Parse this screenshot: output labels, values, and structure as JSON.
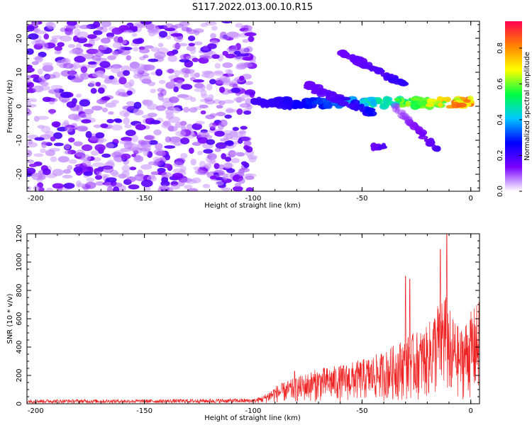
{
  "title": "S117.2022.013.00.10.R15",
  "colorbar": {
    "label": "Normalized spectral amplitude",
    "ticks": [
      "0.0",
      "0.2",
      "0.4",
      "0.6",
      "0.8"
    ],
    "tick_values": [
      0.0,
      0.2,
      0.4,
      0.6,
      0.8
    ],
    "range": [
      0,
      0.95
    ],
    "colors": [
      "#ffffff",
      "#7a00ff",
      "#0000ff",
      "#00c8ff",
      "#00ff40",
      "#ffff00",
      "#ff8000",
      "#ff0050"
    ]
  },
  "chart_data": [
    {
      "type": "heatmap",
      "xlabel": "Height of straight line (km)",
      "ylabel": "Frequency (Hz)",
      "xlim": [
        -204,
        4
      ],
      "ylim": [
        -25,
        25
      ],
      "x_ticks": [
        "-200",
        "-150",
        "-100",
        "-50",
        "0"
      ],
      "x_tick_values": [
        -200,
        -150,
        -100,
        -50,
        0
      ],
      "y_ticks": [
        "20",
        "10",
        "0",
        "-10",
        "-20"
      ],
      "y_tick_values": [
        20,
        10,
        0,
        -10,
        -20
      ],
      "noise_region": {
        "x": [
          -204,
          -100
        ],
        "y": [
          -25,
          25
        ],
        "amplitude": [
          0.05,
          0.2
        ]
      },
      "features": [
        {
          "x": [
            -100,
            0
          ],
          "y": [
            1,
            1
          ],
          "width_hz": 2.5,
          "amplitude": [
            0.2,
            0.95
          ]
        },
        {
          "x": [
            -60,
            -30
          ],
          "y": [
            16,
            6
          ],
          "width_hz": 1.5,
          "amplitude": [
            0.15,
            0.25
          ]
        },
        {
          "x": [
            -75,
            -45
          ],
          "y": [
            6,
            -2
          ],
          "width_hz": 2,
          "amplitude": [
            0.15,
            0.3
          ]
        },
        {
          "x": [
            -35,
            -15
          ],
          "y": [
            0,
            -13
          ],
          "width_hz": 1.5,
          "amplitude": [
            0.1,
            0.2
          ]
        },
        {
          "x": [
            -45,
            -40
          ],
          "y": [
            -12,
            -12
          ],
          "width_hz": 1,
          "amplitude": [
            0.15,
            0.2
          ]
        }
      ]
    },
    {
      "type": "line",
      "xlabel": "Height of straight line (km)",
      "ylabel": "SNR (10 * v/v)",
      "xlim": [
        -204,
        4
      ],
      "ylim": [
        0,
        1200
      ],
      "x_ticks": [
        "-200",
        "-150",
        "-100",
        "-50",
        "0"
      ],
      "x_tick_values": [
        -200,
        -150,
        -100,
        -50,
        0
      ],
      "y_ticks": [
        "0",
        "200",
        "400",
        "600",
        "800",
        "1000",
        "1200"
      ],
      "y_tick_values": [
        0,
        200,
        400,
        600,
        800,
        1000,
        1200
      ],
      "color": "#ee2222",
      "envelope": {
        "x": [
          -204,
          -150,
          -100,
          -95,
          -90,
          -80,
          -70,
          -60,
          -50,
          -40,
          -30,
          -20,
          -12,
          -10,
          -5,
          0,
          4
        ],
        "y": [
          25,
          25,
          30,
          60,
          120,
          180,
          240,
          260,
          300,
          350,
          450,
          520,
          800,
          650,
          500,
          620,
          700
        ]
      },
      "peaks": [
        {
          "x": -81,
          "y": 230
        },
        {
          "x": -30,
          "y": 900
        },
        {
          "x": -28,
          "y": 880
        },
        {
          "x": -14,
          "y": 1090
        },
        {
          "x": -11,
          "y": 1200
        },
        {
          "x": -9,
          "y": 120
        }
      ]
    }
  ]
}
